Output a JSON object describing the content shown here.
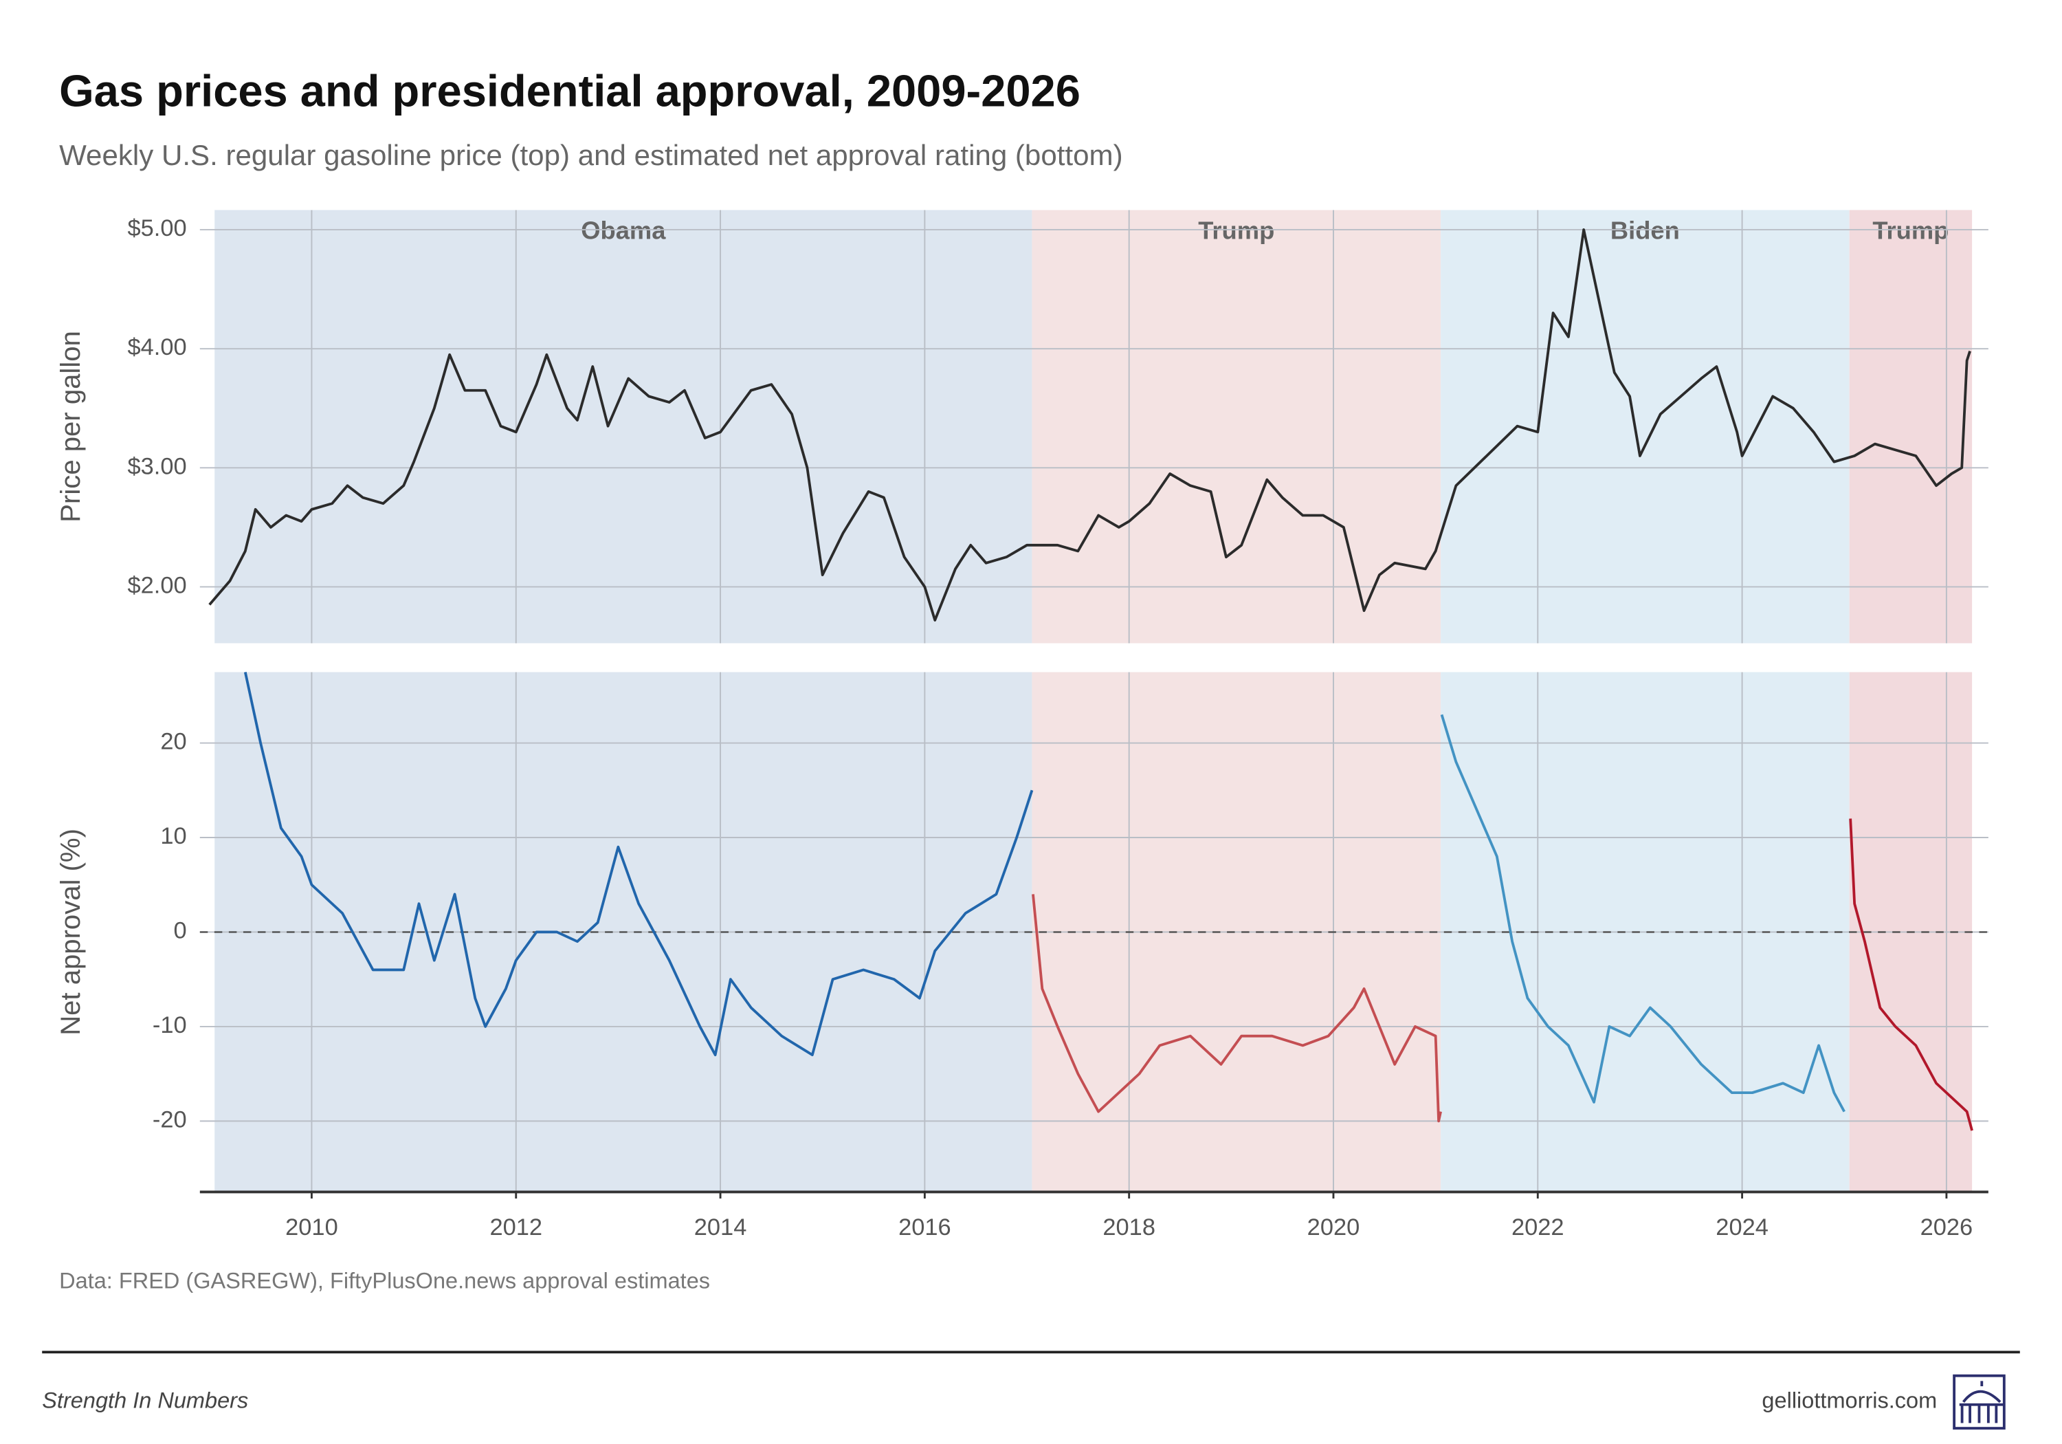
{
  "header": {
    "title": "Gas prices and presidential approval, 2009-2026",
    "subtitle": "Weekly U.S. regular gasoline price (top) and estimated net approval rating (bottom)",
    "source": "Data: FRED (GASREGW), FiftyPlusOne.news approval estimates"
  },
  "footer": {
    "tagline": "Strength In Numbers",
    "site": "gelliottmorris.com"
  },
  "chart_data": [
    {
      "type": "line",
      "ylabel": "Price per gallon",
      "xlim": [
        2008.906,
        2026.41
      ],
      "ylim": [
        1.526,
        5.165
      ],
      "xticks": [
        2010,
        2012,
        2014,
        2016,
        2018,
        2020,
        2022,
        2024,
        2026
      ],
      "yticks": [
        {
          "value": 2,
          "label": "$2.00"
        },
        {
          "value": 3,
          "label": "$3.00"
        },
        {
          "value": 4,
          "label": "$4.00"
        },
        {
          "value": 5,
          "label": "$5.00"
        }
      ],
      "grid": true,
      "periods": [
        {
          "name": "Obama",
          "start": 2009.05,
          "end": 2017.05,
          "color": "#dde6f0"
        },
        {
          "name": "Trump",
          "start": 2017.05,
          "end": 2021.05,
          "color": "#f4e3e3"
        },
        {
          "name": "Biden",
          "start": 2021.05,
          "end": 2025.05,
          "color": "#e0edf5"
        },
        {
          "name": "Trump",
          "start": 2025.05,
          "end": 2026.25,
          "color": "#f2dadd"
        }
      ],
      "series": [
        {
          "name": "Gas price",
          "color": "#2b2b2b",
          "x": [
            2009.0,
            2009.1,
            2009.2,
            2009.35,
            2009.45,
            2009.6,
            2009.75,
            2009.9,
            2010.0,
            2010.2,
            2010.35,
            2010.5,
            2010.7,
            2010.9,
            2011.0,
            2011.2,
            2011.35,
            2011.5,
            2011.7,
            2011.85,
            2012.0,
            2012.2,
            2012.3,
            2012.5,
            2012.6,
            2012.75,
            2012.9,
            2013.1,
            2013.3,
            2013.5,
            2013.65,
            2013.85,
            2014.0,
            2014.3,
            2014.5,
            2014.7,
            2014.85,
            2015.0,
            2015.2,
            2015.45,
            2015.6,
            2015.8,
            2016.0,
            2016.1,
            2016.3,
            2016.45,
            2016.6,
            2016.8,
            2017.0,
            2017.3,
            2017.5,
            2017.7,
            2017.9,
            2018.0,
            2018.2,
            2018.4,
            2018.6,
            2018.8,
            2018.95,
            2019.1,
            2019.35,
            2019.5,
            2019.7,
            2019.9,
            2020.1,
            2020.3,
            2020.45,
            2020.6,
            2020.9,
            2021.0,
            2021.2,
            2021.5,
            2021.8,
            2022.0,
            2022.15,
            2022.3,
            2022.45,
            2022.6,
            2022.75,
            2022.9,
            2023.0,
            2023.2,
            2023.4,
            2023.6,
            2023.75,
            2023.95,
            2024.0,
            2024.3,
            2024.5,
            2024.7,
            2024.9,
            2025.1,
            2025.3,
            2025.5,
            2025.7,
            2025.9,
            2026.05,
            2026.15,
            2026.2,
            2026.23
          ],
          "values": [
            1.85,
            1.95,
            2.05,
            2.3,
            2.65,
            2.5,
            2.6,
            2.55,
            2.65,
            2.7,
            2.85,
            2.75,
            2.7,
            2.85,
            3.05,
            3.5,
            3.95,
            3.65,
            3.65,
            3.35,
            3.3,
            3.7,
            3.95,
            3.5,
            3.4,
            3.85,
            3.35,
            3.75,
            3.6,
            3.55,
            3.65,
            3.25,
            3.3,
            3.65,
            3.7,
            3.45,
            3.0,
            2.1,
            2.45,
            2.8,
            2.75,
            2.25,
            2.0,
            1.72,
            2.15,
            2.35,
            2.2,
            2.25,
            2.35,
            2.35,
            2.3,
            2.6,
            2.5,
            2.55,
            2.7,
            2.95,
            2.85,
            2.8,
            2.25,
            2.35,
            2.9,
            2.75,
            2.6,
            2.6,
            2.5,
            1.8,
            2.1,
            2.2,
            2.15,
            2.3,
            2.85,
            3.1,
            3.35,
            3.3,
            4.3,
            4.1,
            5.0,
            4.4,
            3.8,
            3.6,
            3.1,
            3.45,
            3.6,
            3.75,
            3.85,
            3.3,
            3.1,
            3.6,
            3.5,
            3.3,
            3.05,
            3.1,
            3.2,
            3.15,
            3.1,
            2.85,
            2.95,
            3.0,
            3.9,
            3.98
          ]
        }
      ]
    },
    {
      "type": "line",
      "ylabel": "Net approval (%)",
      "xlim": [
        2008.906,
        2026.41
      ],
      "ylim": [
        -27.5,
        27.5
      ],
      "xticks": [
        2010,
        2012,
        2014,
        2016,
        2018,
        2020,
        2022,
        2024,
        2026
      ],
      "yticks": [
        -20,
        -10,
        0,
        10,
        20
      ],
      "grid": true,
      "reference_line": 0,
      "series": [
        {
          "name": "Obama",
          "color": "#2166ac",
          "x": [
            2009.35,
            2009.5,
            2009.7,
            2009.9,
            2010.0,
            2010.3,
            2010.6,
            2010.9,
            2011.05,
            2011.2,
            2011.4,
            2011.6,
            2011.7,
            2011.9,
            2012.0,
            2012.2,
            2012.4,
            2012.6,
            2012.8,
            2013.0,
            2013.2,
            2013.5,
            2013.8,
            2013.95,
            2014.1,
            2014.3,
            2014.6,
            2014.9,
            2015.1,
            2015.4,
            2015.7,
            2015.95,
            2016.1,
            2016.4,
            2016.7,
            2016.9,
            2017.05
          ],
          "values": [
            27.5,
            20,
            11,
            8,
            5,
            2,
            -4,
            -4,
            3,
            -3,
            4,
            -7,
            -10,
            -6,
            -3,
            0,
            0,
            -1,
            1,
            9,
            3,
            -3,
            -10,
            -13,
            -5,
            -8,
            -11,
            -13,
            -5,
            -4,
            -5,
            -7,
            -2,
            2,
            4,
            10,
            15
          ]
        },
        {
          "name": "Trump",
          "color": "#c44e52",
          "x": [
            2017.06,
            2017.15,
            2017.3,
            2017.5,
            2017.7,
            2017.9,
            2018.1,
            2018.3,
            2018.6,
            2018.9,
            2019.1,
            2019.4,
            2019.7,
            2019.95,
            2020.2,
            2020.3,
            2020.45,
            2020.6,
            2020.8,
            2021.0,
            2021.03,
            2021.05
          ],
          "values": [
            4,
            -6,
            -10,
            -15,
            -19,
            -17,
            -15,
            -12,
            -11,
            -14,
            -11,
            -11,
            -12,
            -11,
            -8,
            -6,
            -10,
            -14,
            -10,
            -11,
            -20,
            -19
          ]
        },
        {
          "name": "Biden",
          "color": "#4393c3",
          "x": [
            2021.06,
            2021.2,
            2021.4,
            2021.6,
            2021.75,
            2021.9,
            2022.1,
            2022.3,
            2022.55,
            2022.7,
            2022.9,
            2023.1,
            2023.3,
            2023.6,
            2023.9,
            2024.1,
            2024.4,
            2024.6,
            2024.75,
            2024.9,
            2025.0
          ],
          "values": [
            23,
            18,
            13,
            8,
            -1,
            -7,
            -10,
            -12,
            -18,
            -10,
            -11,
            -8,
            -10,
            -14,
            -17,
            -17,
            -16,
            -17,
            -12,
            -17,
            -19
          ]
        },
        {
          "name": "Trump",
          "color": "#b2182b",
          "x": [
            2025.06,
            2025.1,
            2025.2,
            2025.35,
            2025.5,
            2025.7,
            2025.9,
            2026.1,
            2026.2,
            2026.25
          ],
          "values": [
            12,
            3,
            -1,
            -8,
            -10,
            -12,
            -16,
            -18,
            -19,
            -21
          ]
        }
      ]
    }
  ]
}
